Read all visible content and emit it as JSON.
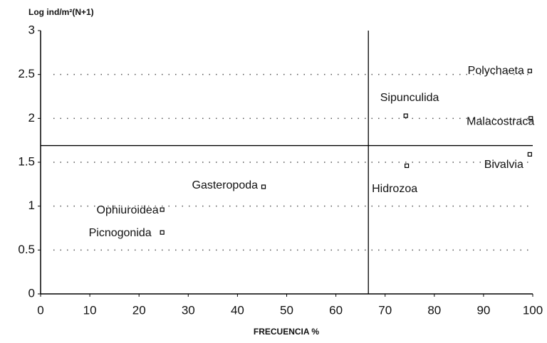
{
  "chart_data": {
    "type": "scatter",
    "y_label": "Log ind/m²(N+1)",
    "x_label": "FRECUENCIA %",
    "labels": [
      "Polychaeta",
      "Sipunculida",
      "Malacostraca",
      "Bivalvia",
      "Hidrozoa",
      "Gasteropoda",
      "Ophiuroidea",
      "Picnogonida"
    ],
    "x": [
      99.4,
      74.2,
      99.6,
      99.4,
      74.4,
      45.3,
      24.7,
      24.7
    ],
    "values": [
      2.54,
      2.03,
      2.0,
      1.59,
      1.46,
      1.22,
      0.96,
      0.7
    ],
    "xlim": [
      0,
      100
    ],
    "xticks": [
      0,
      10,
      20,
      30,
      40,
      50,
      60,
      70,
      80,
      90,
      100
    ],
    "ylim": [
      0,
      3
    ],
    "yticks": [
      0,
      0.5,
      1,
      1.5,
      2,
      2.5,
      3
    ],
    "grid": true,
    "color": "#000000",
    "reference_lines": {
      "x": 66.6,
      "y": 1.69
    }
  }
}
